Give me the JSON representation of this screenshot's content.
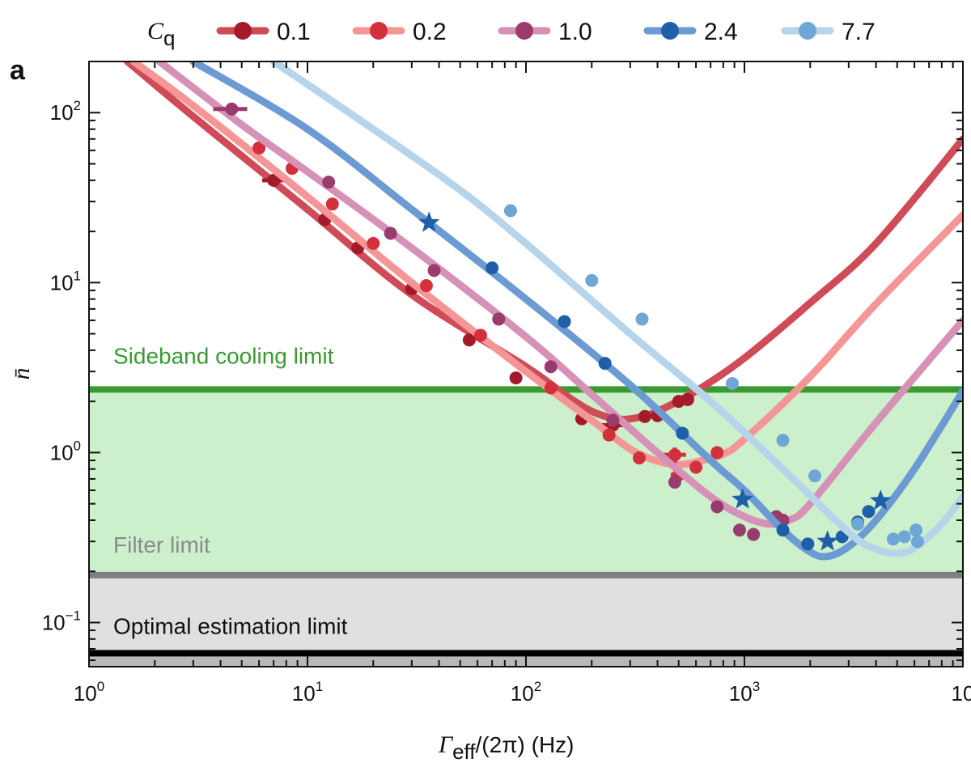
{
  "panel_label": "a",
  "legend_title": "C",
  "legend_title_sub": "q",
  "x_axis": {
    "symbol": "Γ",
    "symbol_sub": "eff",
    "rest": "/(2π)  (Hz)",
    "tick_labels": [
      {
        "base": "10",
        "exp": "0"
      },
      {
        "base": "10",
        "exp": "1"
      },
      {
        "base": "10",
        "exp": "2"
      },
      {
        "base": "10",
        "exp": "3"
      },
      {
        "base": "10",
        "exp": ""
      }
    ]
  },
  "y_axis": {
    "symbol": "n̄",
    "tick_labels": [
      {
        "base": "10",
        "exp": "2"
      },
      {
        "base": "10",
        "exp": "1"
      },
      {
        "base": "10",
        "exp": "0"
      },
      {
        "base": "10",
        "exp": "−1"
      }
    ]
  },
  "colors": {
    "green_band": "#ccf0cc",
    "green_line": "#3a9a32",
    "gray_band": "#e0e0e0",
    "gray_line": "#808080",
    "dark_band": "#b8b8b8",
    "black_line": "#000000",
    "sideband_text": "#3a9a32",
    "filter_text": "#8a8a8a",
    "optimal_text": "#111111"
  },
  "chart_data": {
    "type": "scatter",
    "x_scale": "log",
    "y_scale": "log",
    "xlim": [
      1,
      10000
    ],
    "ylim": [
      0.055,
      200
    ],
    "grid": false,
    "legend_position": "top",
    "limits": [
      {
        "label": "Sideband cooling limit",
        "value": 2.35
      },
      {
        "label": "Filter limit",
        "value": 0.19
      },
      {
        "label": "Optimal estimation limit",
        "value": 0.066
      }
    ],
    "series": [
      {
        "name": "0.1",
        "color": "#a31b2a",
        "line_color": "#cf4b57",
        "theory": [
          [
            1.5,
            200
          ],
          [
            3,
            95
          ],
          [
            10,
            27
          ],
          [
            30,
            8.5
          ],
          [
            100,
            3.2
          ],
          [
            150,
            2.2
          ],
          [
            200,
            1.75
          ],
          [
            260,
            1.58
          ],
          [
            320,
            1.6
          ],
          [
            400,
            1.75
          ],
          [
            600,
            2.3
          ],
          [
            1000,
            3.6
          ],
          [
            2000,
            7.6
          ],
          [
            4000,
            17
          ],
          [
            10000,
            70
          ]
        ],
        "points": [
          {
            "x": 6,
            "y": 62
          },
          {
            "x": 7,
            "y": 40,
            "xerr": 0.8
          },
          {
            "x": 12,
            "y": 23.5
          },
          {
            "x": 17,
            "y": 16
          },
          {
            "x": 30,
            "y": 9.2
          },
          {
            "x": 55,
            "y": 4.6
          },
          {
            "x": 90,
            "y": 2.75
          },
          {
            "x": 180,
            "y": 1.58
          },
          {
            "x": 250,
            "y": 1.45,
            "xerr": 30
          },
          {
            "x": 350,
            "y": 1.63
          },
          {
            "x": 400,
            "y": 1.65
          },
          {
            "x": 500,
            "y": 2.0
          },
          {
            "x": 550,
            "y": 2.05
          }
        ]
      },
      {
        "name": "0.2",
        "color": "#d42f3c",
        "line_color": "#f59696",
        "theory": [
          [
            1.6,
            200
          ],
          [
            3,
            110
          ],
          [
            10,
            32
          ],
          [
            30,
            10
          ],
          [
            100,
            3.0
          ],
          [
            200,
            1.55
          ],
          [
            300,
            1.05
          ],
          [
            400,
            0.89
          ],
          [
            500,
            0.85
          ],
          [
            600,
            0.88
          ],
          [
            800,
            0.98
          ],
          [
            1000,
            1.2
          ],
          [
            2000,
            2.8
          ],
          [
            4000,
            7.5
          ],
          [
            10000,
            25
          ]
        ],
        "points": [
          {
            "x": 6,
            "y": 62
          },
          {
            "x": 8.5,
            "y": 47
          },
          {
            "x": 13,
            "y": 29
          },
          {
            "x": 20,
            "y": 17
          },
          {
            "x": 35,
            "y": 9.6
          },
          {
            "x": 62,
            "y": 4.9
          },
          {
            "x": 130,
            "y": 2.4
          },
          {
            "x": 240,
            "y": 1.27
          },
          {
            "x": 330,
            "y": 0.93
          },
          {
            "x": 480,
            "y": 0.97,
            "xerr": 60,
            "yerr": 0.1
          },
          {
            "x": 500,
            "y": 0.74,
            "xerr": 40
          },
          {
            "x": 600,
            "y": 0.82
          },
          {
            "x": 750,
            "y": 1.0
          }
        ]
      },
      {
        "name": "1.0",
        "color": "#9a3b6e",
        "line_color": "#d691b6",
        "theory": [
          [
            2.1,
            200
          ],
          [
            5,
            85
          ],
          [
            10,
            45
          ],
          [
            30,
            16
          ],
          [
            100,
            4.8
          ],
          [
            200,
            2.2
          ],
          [
            400,
            1.0
          ],
          [
            700,
            0.55
          ],
          [
            1000,
            0.42
          ],
          [
            1300,
            0.38
          ],
          [
            1600,
            0.4
          ],
          [
            2000,
            0.5
          ],
          [
            4000,
            1.5
          ],
          [
            10000,
            6
          ]
        ],
        "points": [
          {
            "x": 4.5,
            "y": 105,
            "xerr": 0.8
          },
          {
            "x": 12.5,
            "y": 39
          },
          {
            "x": 24,
            "y": 19.5
          },
          {
            "x": 38,
            "y": 11.8
          },
          {
            "x": 75,
            "y": 6.1
          },
          {
            "x": 130,
            "y": 3.2
          },
          {
            "x": 250,
            "y": 1.55
          },
          {
            "x": 480,
            "y": 0.67
          },
          {
            "x": 750,
            "y": 0.48
          },
          {
            "x": 950,
            "y": 0.35
          },
          {
            "x": 1100,
            "y": 0.33
          },
          {
            "x": 1400,
            "y": 0.42
          },
          {
            "x": 1500,
            "y": 0.4
          }
        ]
      },
      {
        "name": "2.4",
        "color": "#1f5ea8",
        "line_color": "#6b9bd2",
        "theory": [
          [
            3,
            200
          ],
          [
            10,
            80
          ],
          [
            30,
            27
          ],
          [
            100,
            8
          ],
          [
            300,
            2.5
          ],
          [
            700,
            0.9
          ],
          [
            1000,
            0.6
          ],
          [
            1500,
            0.35
          ],
          [
            2000,
            0.26
          ],
          [
            2400,
            0.245
          ],
          [
            3000,
            0.28
          ],
          [
            4000,
            0.4
          ],
          [
            6000,
            0.8
          ],
          [
            10000,
            2.3
          ]
        ],
        "points": [
          {
            "x": 36,
            "y": 22.5,
            "marker": "star"
          },
          {
            "x": 70,
            "y": 12.2
          },
          {
            "x": 150,
            "y": 5.9
          },
          {
            "x": 230,
            "y": 3.35
          },
          {
            "x": 520,
            "y": 1.3
          },
          {
            "x": 980,
            "y": 0.53,
            "marker": "star"
          },
          {
            "x": 1500,
            "y": 0.35
          },
          {
            "x": 1950,
            "y": 0.29
          },
          {
            "x": 2400,
            "y": 0.3,
            "marker": "star"
          },
          {
            "x": 2800,
            "y": 0.32
          },
          {
            "x": 3300,
            "y": 0.39
          },
          {
            "x": 3700,
            "y": 0.45
          },
          {
            "x": 4200,
            "y": 0.52,
            "marker": "star"
          }
        ]
      },
      {
        "name": "7.7",
        "color": "#6ea6d6",
        "line_color": "#b7d5ea",
        "theory": [
          [
            7,
            200
          ],
          [
            20,
            80
          ],
          [
            50,
            35
          ],
          [
            100,
            17
          ],
          [
            300,
            5
          ],
          [
            700,
            2.0
          ],
          [
            1500,
            0.8
          ],
          [
            3000,
            0.34
          ],
          [
            4000,
            0.27
          ],
          [
            5000,
            0.255
          ],
          [
            6000,
            0.275
          ],
          [
            8000,
            0.38
          ],
          [
            10000,
            0.55
          ]
        ],
        "points": [
          {
            "x": 85,
            "y": 26.5
          },
          {
            "x": 200,
            "y": 10.3
          },
          {
            "x": 340,
            "y": 6.1
          },
          {
            "x": 880,
            "y": 2.55
          },
          {
            "x": 1500,
            "y": 1.18
          },
          {
            "x": 2100,
            "y": 0.73
          },
          {
            "x": 3300,
            "y": 0.38
          },
          {
            "x": 4800,
            "y": 0.31
          },
          {
            "x": 5400,
            "y": 0.32
          },
          {
            "x": 6100,
            "y": 0.35
          },
          {
            "x": 6200,
            "y": 0.3
          }
        ]
      }
    ]
  }
}
